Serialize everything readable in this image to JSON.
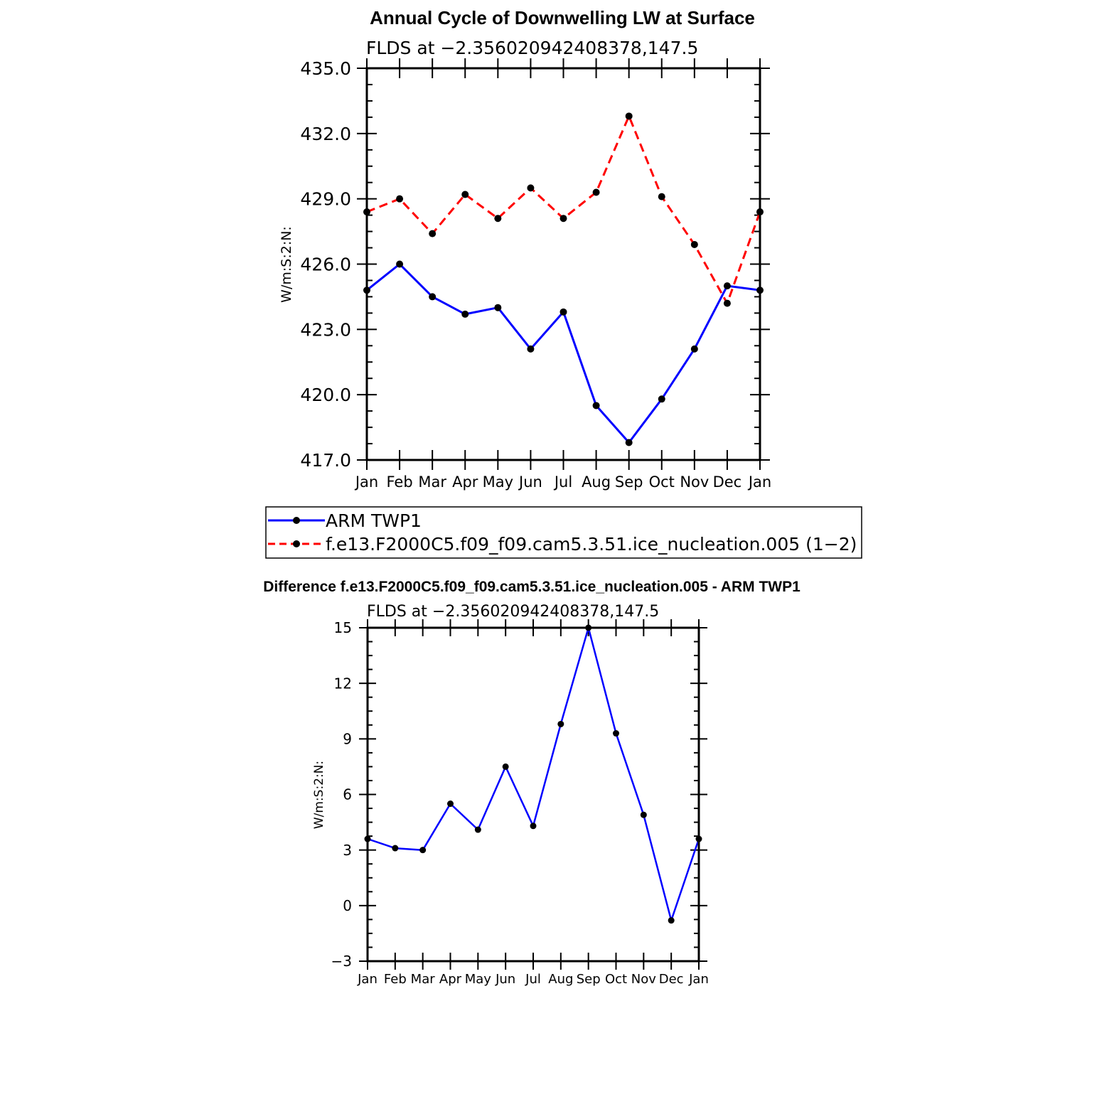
{
  "chart_data": [
    {
      "type": "line",
      "title": "Annual Cycle of Downwelling LW at Surface",
      "subtitle": "FLDS at −2.356020942408378,147.5",
      "ylabel": "W/m:S:2:N:",
      "xlabel": "",
      "categories": [
        "Jan",
        "Feb",
        "Mar",
        "Apr",
        "May",
        "Jun",
        "Jul",
        "Aug",
        "Sep",
        "Oct",
        "Nov",
        "Dec",
        "Jan"
      ],
      "ylim": [
        417.0,
        435.0
      ],
      "yticks": [
        "417.0",
        "420.0",
        "423.0",
        "426.0",
        "429.0",
        "432.0",
        "435.0"
      ],
      "grid": false,
      "legend_position": "below",
      "series": [
        {
          "name": "ARM TWP1",
          "color": "#0000ff",
          "dash": "solid",
          "values": [
            424.8,
            426.0,
            424.5,
            423.7,
            424.0,
            422.1,
            423.8,
            419.5,
            417.8,
            419.8,
            422.1,
            425.0,
            424.8
          ]
        },
        {
          "name": "f.e13.F2000C5.f09_f09.cam5.3.51.ice_nucleation.005 (1−2)",
          "color": "#ff0000",
          "dash": "dashed",
          "values": [
            428.4,
            429.0,
            427.4,
            429.2,
            428.1,
            429.5,
            428.1,
            429.3,
            432.8,
            429.1,
            426.9,
            424.2,
            428.4
          ]
        }
      ]
    },
    {
      "type": "line",
      "title": "Difference f.e13.F2000C5.f09_f09.cam5.3.51.ice_nucleation.005 - ARM TWP1",
      "subtitle": "FLDS at −2.356020942408378,147.5",
      "ylabel": "W/m:S:2:N:",
      "xlabel": "",
      "categories": [
        "Jan",
        "Feb",
        "Mar",
        "Apr",
        "May",
        "Jun",
        "Jul",
        "Aug",
        "Sep",
        "Oct",
        "Nov",
        "Dec",
        "Jan"
      ],
      "ylim": [
        -3,
        15
      ],
      "yticks": [
        "−3",
        "0",
        "3",
        "6",
        "9",
        "12",
        "15"
      ],
      "grid": false,
      "series": [
        {
          "color": "#0000ff",
          "dash": "solid",
          "values": [
            3.6,
            3.1,
            3.0,
            5.5,
            4.1,
            7.5,
            4.3,
            9.8,
            15.0,
            9.3,
            4.9,
            -0.8,
            3.6
          ]
        }
      ]
    }
  ]
}
